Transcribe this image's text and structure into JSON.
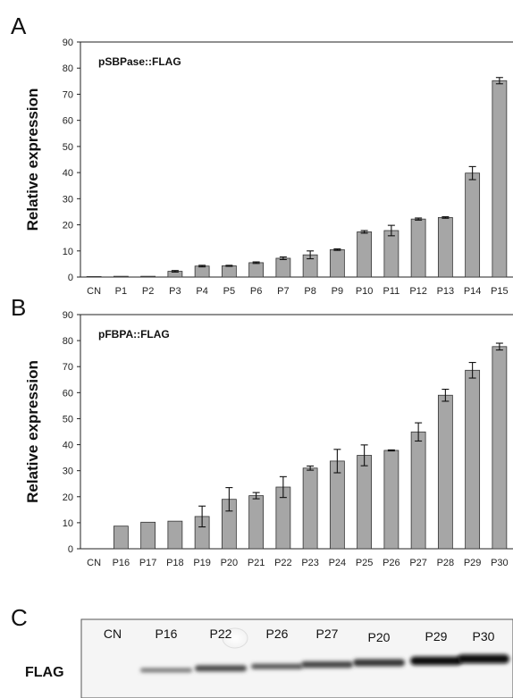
{
  "chart_data": [
    {
      "panel": "A",
      "type": "bar",
      "title": "pSBPase::FLAG",
      "ylabel": "Relative expression",
      "ylim": [
        0,
        90
      ],
      "yticks": [
        0,
        10,
        20,
        30,
        40,
        50,
        60,
        70,
        80,
        90
      ],
      "categories": [
        "CN",
        "P1",
        "P2",
        "P3",
        "P4",
        "P5",
        "P6",
        "P7",
        "P8",
        "P9",
        "P10",
        "P11",
        "P12",
        "P13",
        "P14",
        "P15"
      ],
      "values": [
        0.2,
        0.3,
        0.3,
        2.2,
        4.2,
        4.3,
        5.5,
        7.2,
        8.5,
        10.5,
        17.3,
        17.8,
        22.2,
        22.8,
        39.8,
        75.2
      ],
      "errors": [
        0,
        0,
        0,
        0.3,
        0.3,
        0.2,
        0.3,
        0.5,
        1.5,
        0.3,
        0.5,
        2.0,
        0.4,
        0.3,
        2.5,
        1.2
      ],
      "bar_color": "#a6a6a6",
      "grid": false
    },
    {
      "panel": "B",
      "type": "bar",
      "title": "pFBPA::FLAG",
      "ylabel": "Relative expression",
      "ylim": [
        0,
        90
      ],
      "yticks": [
        0,
        10,
        20,
        30,
        40,
        50,
        60,
        70,
        80,
        90
      ],
      "categories": [
        "CN",
        "P16",
        "P17",
        "P18",
        "P19",
        "P20",
        "P21",
        "P22",
        "P23",
        "P24",
        "P25",
        "P26",
        "P27",
        "P28",
        "P29",
        "P30"
      ],
      "values": [
        0,
        8.7,
        10.2,
        10.6,
        12.4,
        19.0,
        20.4,
        23.7,
        31.0,
        33.7,
        35.9,
        37.8,
        44.9,
        59.0,
        68.6,
        77.7
      ],
      "errors": [
        0,
        0,
        0,
        0,
        4.0,
        4.5,
        1.2,
        4.0,
        0.8,
        4.5,
        4.0,
        0.2,
        3.5,
        2.3,
        3.0,
        1.3
      ],
      "bar_color": "#a6a6a6",
      "grid": false
    }
  ],
  "panels": {
    "a_letter": "A",
    "b_letter": "B",
    "c_letter": "C"
  },
  "blot": {
    "lane_labels": [
      "CN",
      "P16",
      "P22",
      "P26",
      "P27",
      "P20",
      "P29",
      "P30"
    ],
    "row_label": "FLAG",
    "band_intensity": [
      0,
      0.25,
      0.55,
      0.45,
      0.6,
      0.7,
      0.95,
      1.0
    ]
  }
}
